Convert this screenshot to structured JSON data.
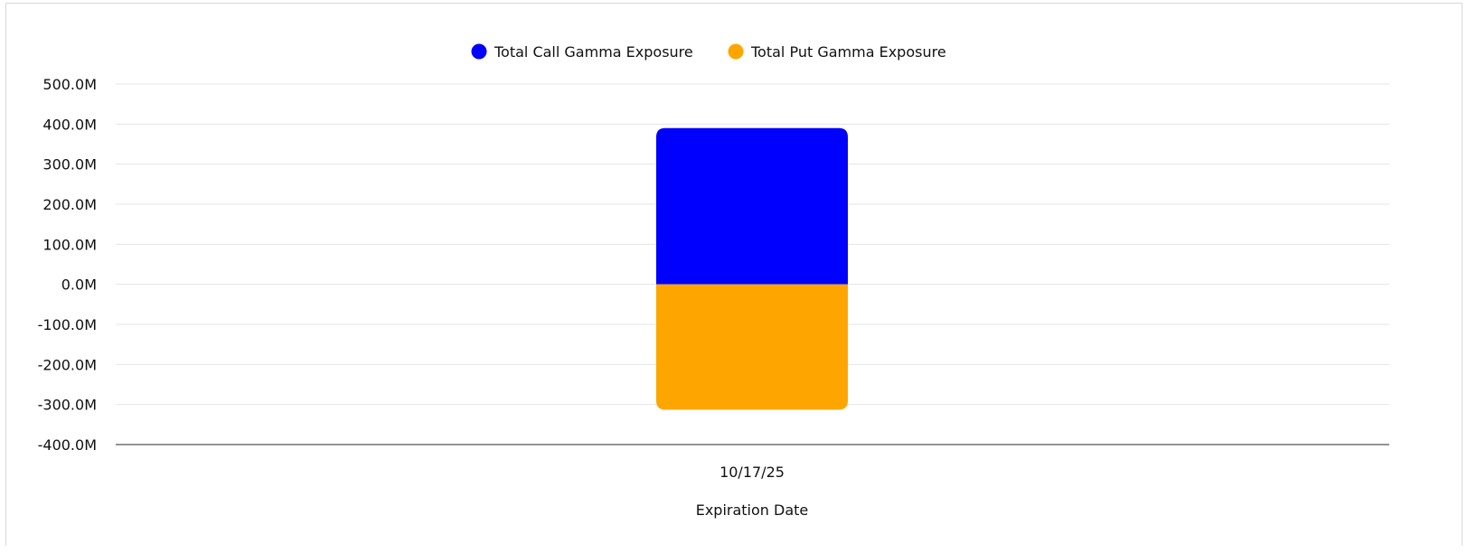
{
  "chart_data": {
    "type": "bar",
    "stacked": true,
    "categories": [
      "10/17/25"
    ],
    "series": [
      {
        "name": "Total Call Gamma Exposure",
        "values": [
          390
        ],
        "color": "#0000ff"
      },
      {
        "name": "Total Put Gamma Exposure",
        "values": [
          -313
        ],
        "color": "#ffa500"
      }
    ],
    "units": "M",
    "xlabel": "Expiration Date",
    "ylabel": "",
    "ylim": [
      -400,
      500
    ],
    "yticks": [
      500,
      400,
      300,
      200,
      100,
      0,
      -100,
      -200,
      -300,
      -400
    ],
    "ytick_labels": [
      "500.0M",
      "400.0M",
      "300.0M",
      "200.0M",
      "100.0M",
      "0.0M",
      "-100.0M",
      "-200.0M",
      "-300.0M",
      "-400.0M"
    ],
    "grid": true,
    "legend_position": "top-center"
  }
}
